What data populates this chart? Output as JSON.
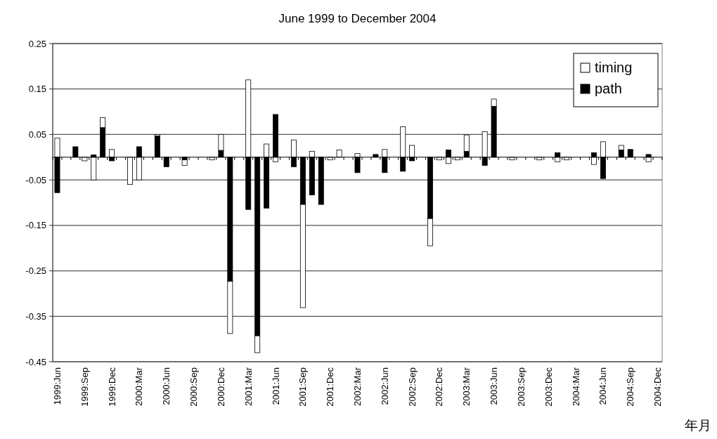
{
  "chart_data": {
    "type": "bar",
    "title": "June 1999 to December 2004",
    "xlabel": "年月",
    "stacked": true,
    "grid": "y",
    "legend": "top right",
    "categories": [
      "1999:Jun",
      null,
      null,
      "1999:Sep",
      null,
      null,
      "1999:Dec",
      null,
      null,
      "2000:Mar",
      null,
      null,
      "2000:Jun",
      null,
      null,
      "2000:Sep",
      null,
      null,
      "2000:Dec",
      null,
      null,
      "2001:Mar",
      null,
      null,
      "2001:Jun",
      null,
      null,
      "2001:Sep",
      null,
      null,
      "2001:Dec",
      null,
      null,
      "2002:Mar",
      null,
      null,
      "2002:Jun",
      null,
      null,
      "2002:Sep",
      null,
      null,
      "2002:Dec",
      null,
      null,
      "2003:Mar",
      null,
      null,
      "2003:Jun",
      null,
      null,
      "2003:Sep",
      null,
      null,
      "2003:Dec",
      null,
      null,
      "2004:Mar",
      null,
      null,
      "2004:Jun",
      null,
      null,
      "2004:Sep",
      null,
      null,
      "2004:Dec"
    ],
    "ylim": [
      -0.45,
      0.25
    ],
    "yticks": [
      -0.45,
      -0.35,
      -0.25,
      -0.15,
      -0.05,
      0.05,
      0.15,
      0.25
    ],
    "series": [
      {
        "name": "path",
        "color": "#000000",
        "values": [
          -0.078,
          null,
          0.023,
          null,
          0.005,
          0.065,
          -0.008,
          null,
          null,
          0.023,
          null,
          0.047,
          -0.021,
          null,
          -0.006,
          null,
          null,
          null,
          0.015,
          -0.273,
          null,
          -0.115,
          -0.393,
          -0.112,
          0.094,
          null,
          -0.021,
          -0.104,
          -0.083,
          -0.104,
          null,
          null,
          null,
          -0.034,
          null,
          0.006,
          -0.034,
          null,
          -0.031,
          -0.008,
          null,
          -0.135,
          null,
          0.016,
          null,
          0.013,
          null,
          -0.018,
          0.112,
          null,
          null,
          null,
          null,
          null,
          null,
          0.01,
          null,
          null,
          null,
          0.01,
          -0.047,
          null,
          0.016,
          0.017,
          null,
          0.006,
          null
        ]
      },
      {
        "name": "timing",
        "color": "#ffffff",
        "values": [
          0.042,
          null,
          null,
          -0.008,
          -0.05,
          0.022,
          0.017,
          null,
          -0.06,
          -0.05,
          null,
          0.003,
          null,
          null,
          -0.012,
          null,
          null,
          -0.006,
          0.035,
          -0.115,
          null,
          0.17,
          -0.037,
          0.029,
          -0.01,
          null,
          0.038,
          -0.227,
          0.013,
          null,
          -0.006,
          0.016,
          null,
          0.008,
          null,
          null,
          0.017,
          null,
          0.067,
          0.026,
          null,
          -0.06,
          -0.006,
          -0.014,
          -0.006,
          0.036,
          null,
          0.056,
          0.016,
          null,
          -0.006,
          null,
          null,
          -0.006,
          null,
          -0.01,
          -0.006,
          null,
          null,
          -0.016,
          0.034,
          null,
          0.01,
          null,
          null,
          -0.01,
          null
        ]
      }
    ]
  }
}
